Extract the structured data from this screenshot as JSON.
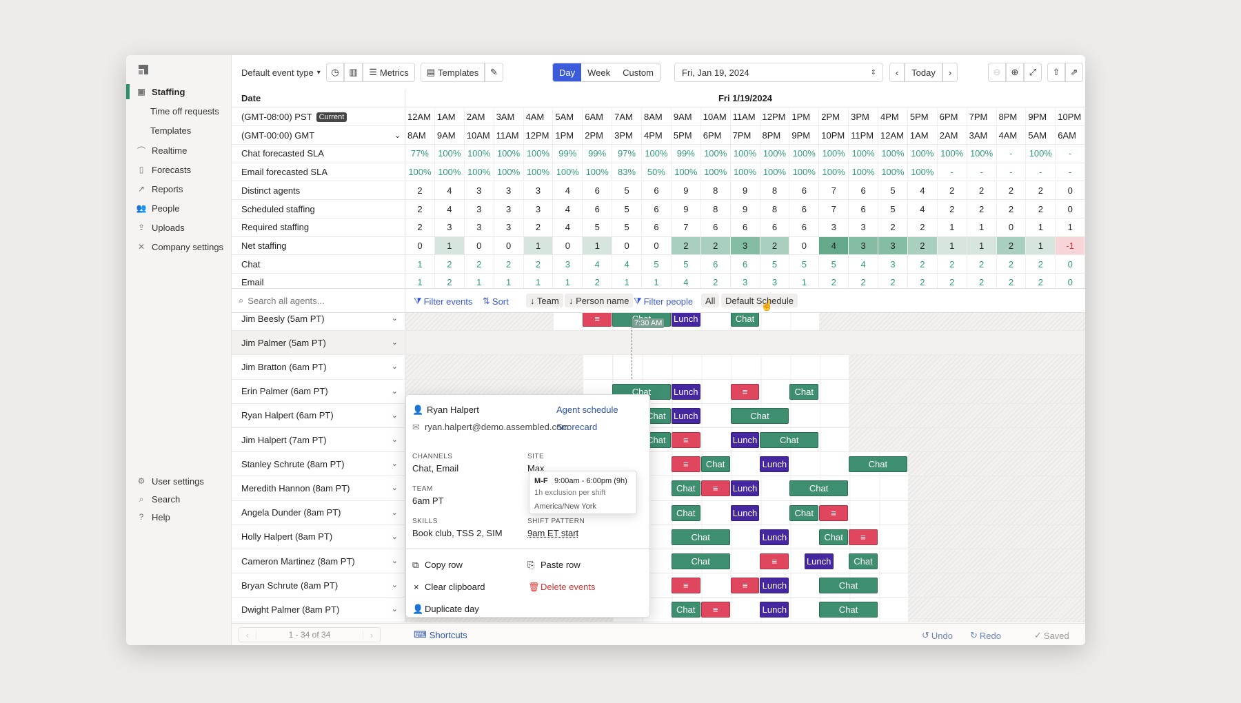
{
  "sidebar": {
    "items": [
      {
        "label": "Staffing",
        "icon": "staffing-icon",
        "active": true
      },
      {
        "label": "Time off requests",
        "sub": true
      },
      {
        "label": "Templates",
        "sub": true
      },
      {
        "label": "Realtime",
        "icon": "realtime-icon"
      },
      {
        "label": "Forecasts",
        "icon": "book-icon"
      },
      {
        "label": "Reports",
        "icon": "chart-line-icon"
      },
      {
        "label": "People",
        "icon": "people-icon"
      },
      {
        "label": "Uploads",
        "icon": "upload-icon"
      },
      {
        "label": "Company settings",
        "icon": "tools-icon"
      }
    ],
    "bottom": [
      {
        "label": "User settings",
        "icon": "gear-icon"
      },
      {
        "label": "Search",
        "icon": "search-icon"
      },
      {
        "label": "Help",
        "icon": "help-icon"
      }
    ]
  },
  "toolbar": {
    "event_type": "Default event type",
    "metrics": "Metrics",
    "templates": "Templates",
    "views": [
      "Day",
      "Week",
      "Custom"
    ],
    "active_view": "Day",
    "date": "Fri, Jan 19, 2024",
    "today": "Today"
  },
  "grid": {
    "date_label": "Date",
    "day_header": "Fri 1/19/2024",
    "pst_label": "(GMT-08:00) PST",
    "current_badge": "Current",
    "gmt_label": "(GMT-00:00) GMT",
    "pst_hours": [
      "12AM",
      "1AM",
      "2AM",
      "3AM",
      "4AM",
      "5AM",
      "6AM",
      "7AM",
      "8AM",
      "9AM",
      "10AM",
      "11AM",
      "12PM",
      "1PM",
      "2PM",
      "3PM",
      "4PM",
      "5PM",
      "6PM",
      "7PM",
      "8PM",
      "9PM",
      "10PM"
    ],
    "gmt_hours": [
      "8AM",
      "9AM",
      "10AM",
      "11AM",
      "12PM",
      "1PM",
      "2PM",
      "3PM",
      "4PM",
      "5PM",
      "6PM",
      "7PM",
      "8PM",
      "9PM",
      "10PM",
      "11PM",
      "12AM",
      "1AM",
      "2AM",
      "3AM",
      "4AM",
      "5AM",
      "6AM"
    ],
    "metrics": [
      {
        "label": "Chat forecasted SLA",
        "green": true,
        "values": [
          "77%",
          "100%",
          "100%",
          "100%",
          "100%",
          "99%",
          "99%",
          "97%",
          "100%",
          "99%",
          "100%",
          "100%",
          "100%",
          "100%",
          "100%",
          "100%",
          "100%",
          "100%",
          "100%",
          "100%",
          "-",
          "100%",
          "-"
        ]
      },
      {
        "label": "Email forecasted SLA",
        "green": true,
        "values": [
          "100%",
          "100%",
          "100%",
          "100%",
          "100%",
          "100%",
          "100%",
          "83%",
          "50%",
          "100%",
          "100%",
          "100%",
          "100%",
          "100%",
          "100%",
          "100%",
          "100%",
          "100%",
          "-",
          "-",
          "-",
          "-",
          "-"
        ]
      },
      {
        "label": "Distinct agents",
        "values": [
          "2",
          "4",
          "3",
          "3",
          "3",
          "4",
          "6",
          "5",
          "6",
          "9",
          "8",
          "9",
          "8",
          "6",
          "7",
          "6",
          "5",
          "4",
          "2",
          "2",
          "2",
          "2",
          "0"
        ]
      },
      {
        "label": "Scheduled staffing",
        "values": [
          "2",
          "4",
          "3",
          "3",
          "3",
          "4",
          "6",
          "5",
          "6",
          "9",
          "8",
          "9",
          "8",
          "6",
          "7",
          "6",
          "5",
          "4",
          "2",
          "2",
          "2",
          "2",
          "0"
        ]
      },
      {
        "label": "Required staffing",
        "values": [
          "2",
          "3",
          "3",
          "3",
          "2",
          "4",
          "5",
          "5",
          "6",
          "7",
          "6",
          "6",
          "6",
          "6",
          "3",
          "3",
          "2",
          "2",
          "1",
          "1",
          "0",
          "1",
          "1"
        ]
      },
      {
        "label": "Net staffing",
        "net": true,
        "values": [
          "0",
          "1",
          "0",
          "0",
          "1",
          "0",
          "1",
          "0",
          "0",
          "2",
          "2",
          "3",
          "2",
          "0",
          "4",
          "3",
          "3",
          "2",
          "1",
          "1",
          "2",
          "1",
          "-1"
        ]
      },
      {
        "label": "Chat",
        "green": true,
        "values": [
          "1",
          "2",
          "2",
          "2",
          "2",
          "3",
          "4",
          "4",
          "5",
          "5",
          "6",
          "6",
          "5",
          "5",
          "5",
          "4",
          "3",
          "2",
          "2",
          "2",
          "2",
          "2",
          "0"
        ]
      },
      {
        "label": "Email",
        "green": true,
        "values": [
          "1",
          "2",
          "1",
          "1",
          "1",
          "1",
          "2",
          "1",
          "1",
          "4",
          "2",
          "3",
          "3",
          "1",
          "2",
          "2",
          "2",
          "2",
          "2",
          "2",
          "2",
          "2",
          "0"
        ]
      }
    ]
  },
  "filterbar": {
    "search_placeholder": "Search all agents...",
    "filter_events": "Filter events",
    "sort": "Sort",
    "team": "↓ Team",
    "person_name": "↓ Person name",
    "filter_people": "Filter people",
    "all": "All",
    "schedule": "Default Schedule",
    "time_marker": "7:30 AM"
  },
  "agents": [
    {
      "name": "Jim Beesly (5am PT)",
      "events": [
        {
          "t": "red",
          "s": 6,
          "e": 7,
          "label": "≡"
        },
        {
          "t": "chat",
          "s": 7,
          "e": 9,
          "label": "Chat"
        },
        {
          "t": "lunch",
          "s": 9,
          "e": 10,
          "label": "Lunch"
        },
        {
          "t": "chat",
          "s": 11,
          "e": 12,
          "label": "Chat"
        }
      ]
    },
    {
      "name": "Jim Palmer (5am PT)",
      "events": [],
      "highlight": true
    },
    {
      "name": "Jim Bratton (6am PT)",
      "events": []
    },
    {
      "name": "Erin Palmer (6am PT)",
      "events": [
        {
          "t": "chat",
          "s": 7,
          "e": 9,
          "label": "Chat"
        },
        {
          "t": "lunch",
          "s": 9,
          "e": 10,
          "label": "Lunch"
        },
        {
          "t": "red",
          "s": 11,
          "e": 12,
          "label": "≡"
        },
        {
          "t": "chat",
          "s": 13,
          "e": 14,
          "label": "Chat"
        }
      ]
    },
    {
      "name": "Ryan Halpert (6am PT)",
      "events": [
        {
          "t": "chat",
          "s": 8,
          "e": 9,
          "label": "Chat"
        },
        {
          "t": "lunch",
          "s": 9,
          "e": 10,
          "label": "Lunch"
        },
        {
          "t": "chat",
          "s": 11,
          "e": 13,
          "label": "Chat"
        }
      ]
    },
    {
      "name": "Jim Halpert (7am PT)",
      "events": [
        {
          "t": "chat",
          "s": 8,
          "e": 9,
          "label": "Chat"
        },
        {
          "t": "red",
          "s": 9,
          "e": 10,
          "label": "≡"
        },
        {
          "t": "lunch",
          "s": 11,
          "e": 12,
          "label": "Lunch"
        },
        {
          "t": "chat",
          "s": 12,
          "e": 14,
          "label": "Chat"
        }
      ]
    },
    {
      "name": "Stanley Schrute (8am PT)",
      "events": [
        {
          "t": "red",
          "s": 9,
          "e": 10,
          "label": "≡"
        },
        {
          "t": "chat",
          "s": 10,
          "e": 11,
          "label": "Chat"
        },
        {
          "t": "lunch",
          "s": 12,
          "e": 13,
          "label": "Lunch"
        },
        {
          "t": "chat",
          "s": 15,
          "e": 17,
          "label": "Chat"
        }
      ]
    },
    {
      "name": "Meredith Hannon (8am PT)",
      "events": [
        {
          "t": "chat",
          "s": 9,
          "e": 10,
          "label": "Chat"
        },
        {
          "t": "red",
          "s": 10,
          "e": 11,
          "label": "≡"
        },
        {
          "t": "lunch",
          "s": 11,
          "e": 12,
          "label": "Lunch"
        },
        {
          "t": "chat",
          "s": 13,
          "e": 15,
          "label": "Chat"
        }
      ]
    },
    {
      "name": "Angela Dunder (8am PT)",
      "events": [
        {
          "t": "chat",
          "s": 9,
          "e": 10,
          "label": "Chat"
        },
        {
          "t": "lunch",
          "s": 11,
          "e": 12,
          "label": "Lunch"
        },
        {
          "t": "chat",
          "s": 13,
          "e": 14,
          "label": "Chat"
        },
        {
          "t": "red",
          "s": 14,
          "e": 15,
          "label": "≡"
        }
      ]
    },
    {
      "name": "Holly Halpert (8am PT)",
      "events": [
        {
          "t": "chat",
          "s": 9,
          "e": 11,
          "label": "Chat"
        },
        {
          "t": "lunch",
          "s": 12,
          "e": 13,
          "label": "Lunch"
        },
        {
          "t": "chat",
          "s": 14,
          "e": 15,
          "label": "Chat"
        },
        {
          "t": "red",
          "s": 15,
          "e": 16,
          "label": "≡"
        }
      ]
    },
    {
      "name": "Cameron Martinez (8am PT)",
      "events": [
        {
          "t": "chat",
          "s": 9,
          "e": 11,
          "label": "Chat"
        },
        {
          "t": "red",
          "s": 12,
          "e": 13,
          "label": "≡"
        },
        {
          "t": "lunch",
          "s": 13.5,
          "e": 14.5,
          "label": "Lunch"
        },
        {
          "t": "chat",
          "s": 15,
          "e": 16,
          "label": "Chat"
        }
      ]
    },
    {
      "name": "Bryan Schrute (8am PT)",
      "events": [
        {
          "t": "red",
          "s": 9,
          "e": 10,
          "label": "≡"
        },
        {
          "t": "red",
          "s": 11,
          "e": 12,
          "label": "≡"
        },
        {
          "t": "lunch",
          "s": 12,
          "e": 13,
          "label": "Lunch"
        },
        {
          "t": "chat",
          "s": 14,
          "e": 16,
          "label": "Chat"
        }
      ]
    },
    {
      "name": "Dwight Palmer (8am PT)",
      "events": [
        {
          "t": "chat",
          "s": 9,
          "e": 10,
          "label": "Chat"
        },
        {
          "t": "red",
          "s": 10,
          "e": 11,
          "label": "≡"
        },
        {
          "t": "lunch",
          "s": 12,
          "e": 13,
          "label": "Lunch"
        },
        {
          "t": "chat",
          "s": 14,
          "e": 16,
          "label": "Chat"
        }
      ]
    }
  ],
  "popup": {
    "name": "Ryan Halpert",
    "email": "ryan.halpert@demo.assembled.com",
    "agent_schedule": "Agent schedule",
    "scorecard": "Scorecard",
    "channels_label": "CHANNELS",
    "channels": "Chat, Email",
    "site_label": "SITE",
    "site": "Max",
    "team_label": "TEAM",
    "team": "6am PT",
    "skills_label": "SKILLS",
    "skills": "Book club, TSS 2, SIM",
    "shift_label": "SHIFT PATTERN",
    "shift": "9am ET start",
    "copy_row": "Copy row",
    "paste_row": "Paste row",
    "clear_clipboard": "Clear clipboard",
    "delete_events": "Delete events",
    "duplicate_day": "Duplicate day"
  },
  "tooltip": {
    "days": "M-F",
    "time": "9:00am - 6:00pm (9h)",
    "exclusion": "1h exclusion per shift",
    "tz": "America/New York"
  },
  "footer": {
    "pagination": "1 - 34 of 34",
    "shortcuts": "Shortcuts",
    "undo": "Undo",
    "redo": "Redo",
    "saved": "Saved"
  },
  "colors": {
    "accent": "#3b5bdb",
    "chat": "#3d8f70",
    "lunch": "#4527a0",
    "red": "#e0475e",
    "green_text": "#2f9b76"
  }
}
